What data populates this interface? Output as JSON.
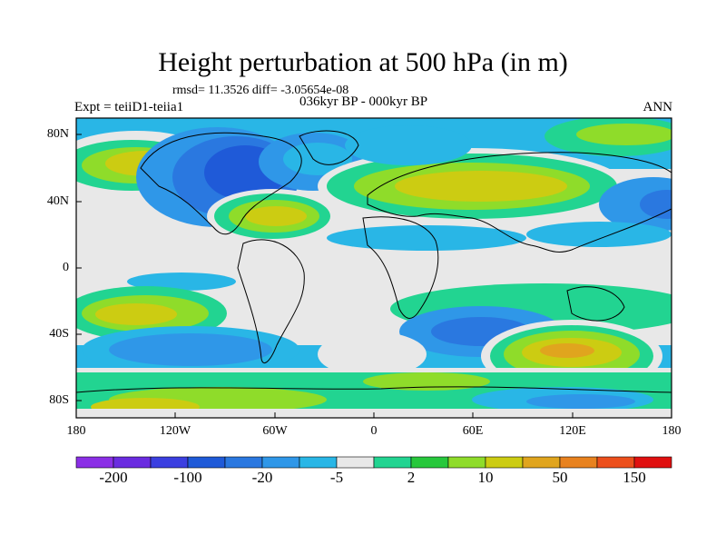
{
  "title": "Height perturbation at 500 hPa (in m)",
  "stats": "rmsd= 11.3526 diff= -3.05654e-08",
  "period": "036kyr BP - 000kyr BP",
  "experiment": "Expt = teiiD1-teiia1",
  "season": "ANN",
  "lat_ticks": [
    "80N",
    "40N",
    "0",
    "40S",
    "80S"
  ],
  "lon_ticks": [
    "180",
    "120W",
    "60W",
    "0",
    "60E",
    "120E",
    "180"
  ],
  "colorbar": {
    "colors": [
      "#8b2fe6",
      "#6a2be0",
      "#3b3fe0",
      "#1f5ad8",
      "#2a78e0",
      "#2f97e8",
      "#29b6e6",
      "#e8e8e8",
      "#22d491",
      "#27c83c",
      "#8fdc2a",
      "#cccc12",
      "#e0a51e",
      "#e8821f",
      "#ec4f1c",
      "#e01010"
    ],
    "labels": [
      "-200",
      "-100",
      "-20",
      "-5",
      "2",
      "10",
      "50",
      "150"
    ]
  }
}
